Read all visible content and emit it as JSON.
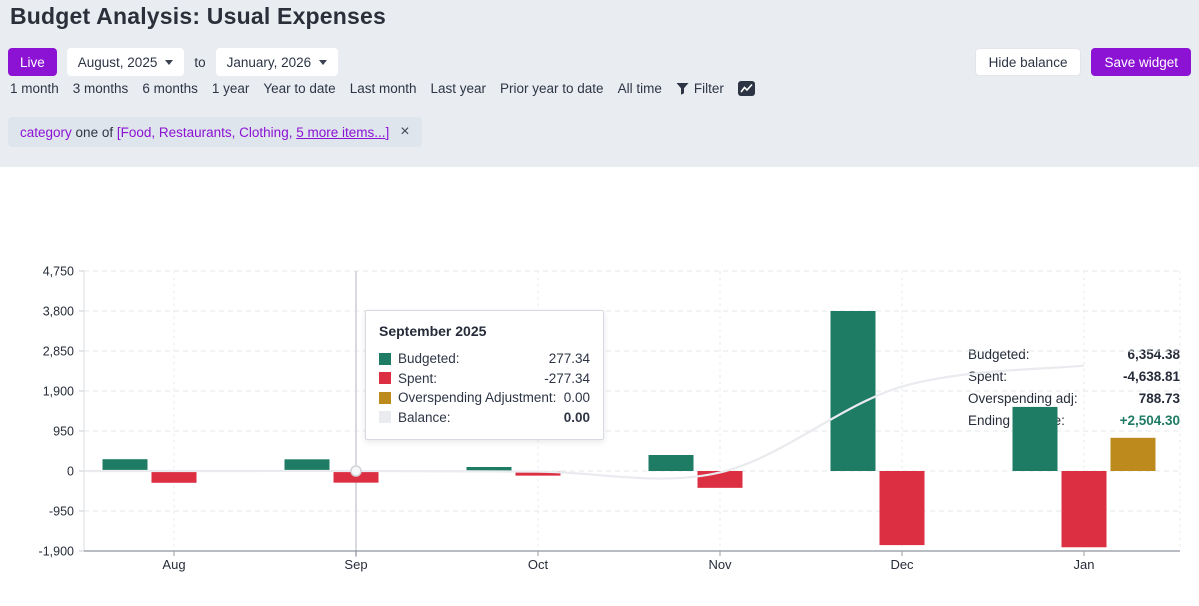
{
  "header": {
    "title": "Budget Analysis: Usual Expenses",
    "live_label": "Live",
    "date_from": "August, 2025",
    "to_word": "to",
    "date_to": "January, 2026",
    "hide_balance_label": "Hide balance",
    "save_widget_label": "Save widget",
    "quick_ranges": [
      "1 month",
      "3 months",
      "6 months",
      "1 year",
      "Year to date",
      "Last month",
      "Last year",
      "Prior year to date",
      "All time"
    ],
    "filter_label": "Filter"
  },
  "filter_chip": {
    "field": "category",
    "op": "one of",
    "list_prefix": "[Food, Restaurants, Clothing,",
    "more_link": "5 more items...",
    "list_suffix": "]",
    "close_glyph": "×"
  },
  "summary": {
    "rows": [
      {
        "label": "Budgeted:",
        "value": "6,354.38",
        "highlight": false
      },
      {
        "label": "Spent:",
        "value": "-4,638.81",
        "highlight": false
      },
      {
        "label": "Overspending adj:",
        "value": "788.73",
        "highlight": false
      },
      {
        "label": "Ending balance:",
        "value": "+2,504.30",
        "highlight": true
      }
    ]
  },
  "tooltip": {
    "title": "September 2025",
    "rows": [
      {
        "swatch": "#1e7b64",
        "label": "Budgeted:",
        "value": "277.34",
        "bold": false
      },
      {
        "swatch": "#dc2f42",
        "label": "Spent:",
        "value": "-277.34",
        "bold": false
      },
      {
        "swatch": "#bd8b1d",
        "label": "Overspending Adjustment:",
        "value": "0.00",
        "bold": false
      },
      {
        "swatch": "#e9ebee",
        "label": "Balance:",
        "value": "0.00",
        "bold": true
      }
    ]
  },
  "chart_data": {
    "type": "bar",
    "categories": [
      "Aug",
      "Sep",
      "Oct",
      "Nov",
      "Dec",
      "Jan"
    ],
    "series": [
      {
        "name": "Budgeted",
        "color": "#1e7b64",
        "values": [
          280.0,
          277.34,
          95.0,
          380.0,
          3800.0,
          1522.04
        ]
      },
      {
        "name": "Spent",
        "color": "#dc2f42",
        "values": [
          -280.0,
          -277.34,
          -110.0,
          -400.0,
          -1760.0,
          -1811.47
        ]
      },
      {
        "name": "Overspending Adjustment",
        "color": "#bd8b1d",
        "values": [
          0,
          0,
          0,
          0,
          0,
          788.73
        ]
      }
    ],
    "line_series": {
      "name": "Balance",
      "color": "#e9ebef",
      "values": [
        0,
        0,
        -15,
        -35,
        2005,
        2504.3
      ]
    },
    "y_ticks": [
      {
        "value": 4750,
        "label": "4,750"
      },
      {
        "value": 3800,
        "label": "3,800"
      },
      {
        "value": 2850,
        "label": "2,850"
      },
      {
        "value": 1900,
        "label": "1,900"
      },
      {
        "value": 950,
        "label": "950"
      },
      {
        "value": 0,
        "label": "0"
      },
      {
        "value": -950,
        "label": "-950"
      },
      {
        "value": -1900,
        "label": "-1,900"
      }
    ],
    "ylim": [
      -1900,
      4750
    ],
    "grid": true,
    "legend_position": "none",
    "hover": {
      "category_index": 1,
      "dot_value": 0
    }
  },
  "colors": {
    "accent_purple": "#8c12d4",
    "budgeted_green": "#1e7b64",
    "spent_red": "#dc2f42",
    "overspending_gold": "#bd8b1d",
    "balance_gray": "#e9ebef",
    "header_bg": "#e9edf1",
    "ink": "#262c39"
  }
}
